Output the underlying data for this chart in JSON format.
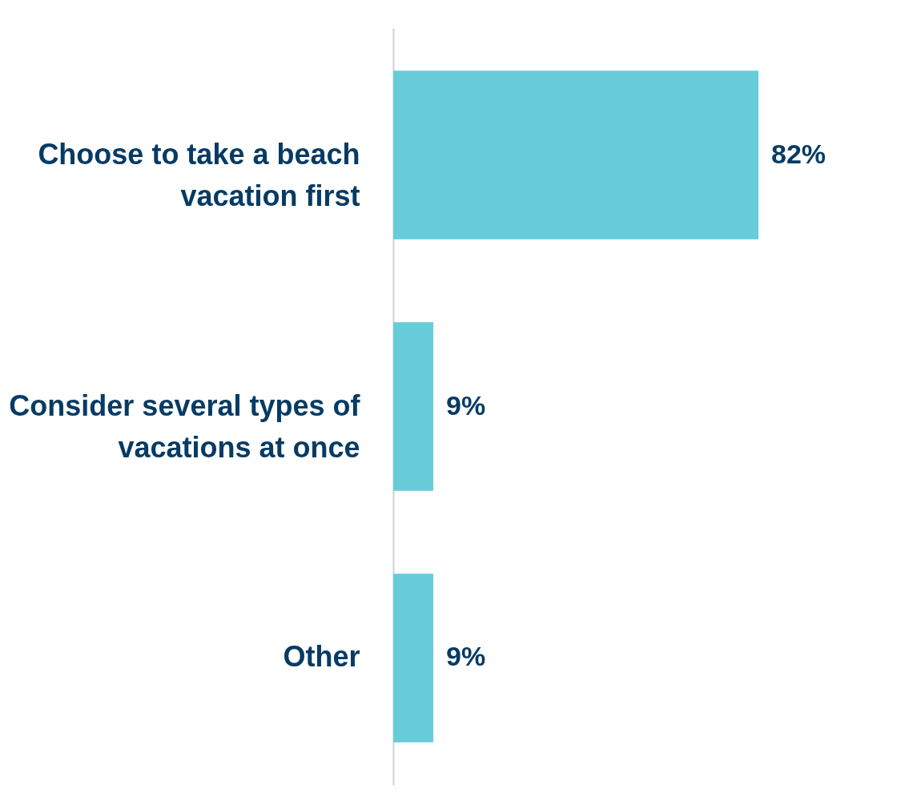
{
  "chart_data": {
    "type": "bar",
    "orientation": "horizontal",
    "categories": [
      "Choose to take a beach vacation first",
      "Consider several types of vacations at once",
      "Other"
    ],
    "values": [
      82,
      9,
      9
    ],
    "value_labels": [
      "82%",
      "9%",
      "9%"
    ],
    "color": "#67cbd9"
  }
}
